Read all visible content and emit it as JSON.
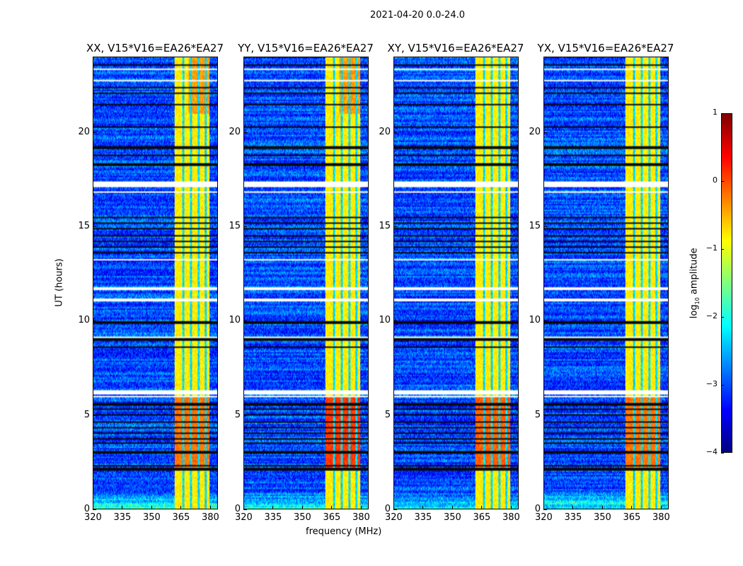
{
  "chart_data": {
    "type": "heatmap",
    "suptitle": "2021-04-20 0.0-24.0",
    "xlabel": "frequency (MHz)",
    "ylabel": "UT (hours)",
    "xlim": [
      320,
      384
    ],
    "ylim": [
      0,
      24
    ],
    "xticks": [
      320,
      335,
      350,
      365,
      380
    ],
    "yticks": [
      0,
      5,
      10,
      15,
      20
    ],
    "panels": [
      {
        "title": "XX, V15*V16=EA26*EA27",
        "low_band_boost": 0.6
      },
      {
        "title": "YY, V15*V16=EA26*EA27",
        "low_band_boost": 0.9
      },
      {
        "title": "XY, V15*V16=EA26*EA27",
        "low_band_boost": 0.7
      },
      {
        "title": "YX, V15*V16=EA26*EA27",
        "low_band_boost": 0.6
      }
    ],
    "background_log_amplitude": -3,
    "rfi_band_mhz": [
      362,
      380
    ],
    "rfi_band_log_amplitude": -0.8,
    "rfi_gap_channels_mhz": [
      366.5,
      370.5,
      374.5,
      378
    ],
    "flagged_hours": [
      [
        17.1,
        17.4
      ],
      [
        16.8,
        16.9
      ],
      [
        11.0,
        11.2
      ],
      [
        11.65,
        11.75
      ],
      [
        6.1,
        6.3
      ],
      [
        5.95,
        6.0
      ],
      [
        23.3,
        23.4
      ],
      [
        22.7,
        22.8
      ],
      [
        20.6,
        20.65
      ],
      [
        13.2,
        13.25
      ],
      [
        9.1,
        9.15
      ]
    ],
    "dark_line_hours": [
      2.1,
      2.3,
      3.0,
      3.5,
      3.7,
      4.0,
      4.3,
      4.6,
      5.0,
      5.3,
      5.55,
      8.6,
      9.0,
      9.9,
      13.6,
      13.9,
      14.2,
      14.5,
      14.9,
      15.2,
      15.5,
      18.3,
      18.8,
      19.2,
      20.3,
      21.5,
      22.1,
      22.4,
      23.6
    ],
    "colorbar": {
      "label": "log10 amplitude",
      "label_main": "log",
      "label_sub": "10",
      "label_rest": " amplitude",
      "range": [
        -4,
        1
      ],
      "ticks": [
        "1",
        "0",
        "−1",
        "−2",
        "−3",
        "−4"
      ],
      "tick_values": [
        1,
        0,
        -1,
        -2,
        -3,
        -4
      ]
    }
  }
}
